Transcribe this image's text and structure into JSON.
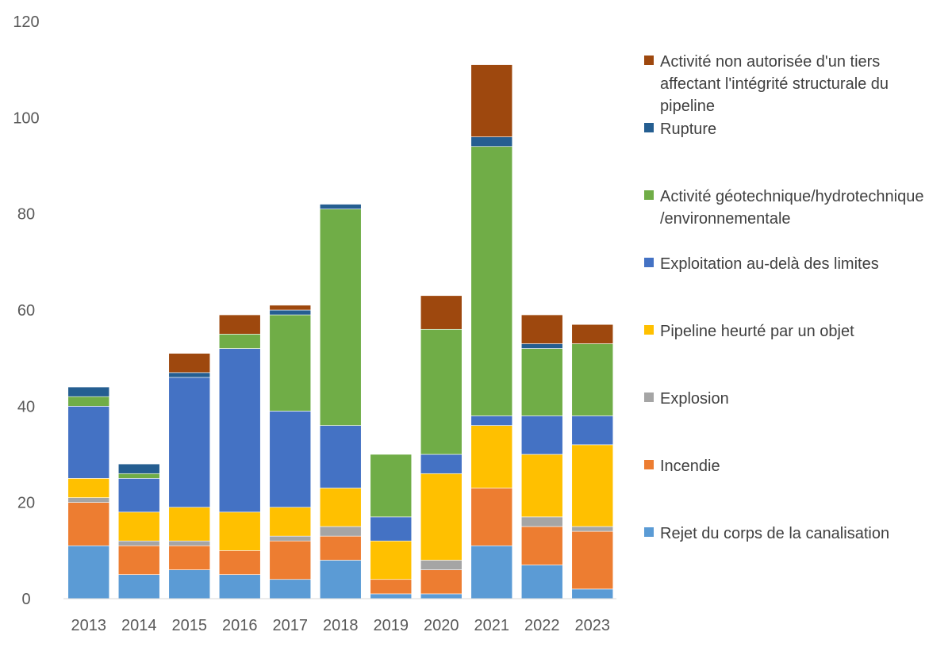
{
  "chart_data": {
    "type": "bar",
    "stacked": true,
    "title": "",
    "xlabel": "",
    "ylabel": "",
    "ylim": [
      0,
      120
    ],
    "yticks": [
      0,
      20,
      40,
      60,
      80,
      100,
      120
    ],
    "grid": false,
    "legend_position": "right",
    "categories": [
      "2013",
      "2014",
      "2015",
      "2016",
      "2017",
      "2018",
      "2019",
      "2020",
      "2021",
      "2022",
      "2023"
    ],
    "series": [
      {
        "name": "Rejet du corps de la canalisation",
        "color": "#5B9BD5",
        "values": [
          11,
          5,
          6,
          5,
          4,
          8,
          1,
          1,
          11,
          7,
          2
        ]
      },
      {
        "name": "Incendie",
        "color": "#ED7D31",
        "values": [
          9,
          6,
          5,
          5,
          8,
          5,
          3,
          5,
          12,
          8,
          12
        ]
      },
      {
        "name": "Explosion",
        "color": "#A5A5A5",
        "values": [
          1,
          1,
          1,
          0,
          1,
          2,
          0,
          2,
          0,
          2,
          1
        ]
      },
      {
        "name": "Pipeline heurté par un objet",
        "color": "#FFC000",
        "values": [
          4,
          6,
          7,
          8,
          6,
          8,
          8,
          18,
          13,
          13,
          17
        ]
      },
      {
        "name": "Exploitation au-delà des limites",
        "color": "#4472C4",
        "values": [
          15,
          7,
          27,
          34,
          20,
          13,
          5,
          4,
          2,
          8,
          6
        ]
      },
      {
        "name": "Activité géotechnique/hydrotechnique /environnementale",
        "color": "#70AD47",
        "values": [
          2,
          1,
          0,
          3,
          20,
          45,
          13,
          26,
          56,
          14,
          15
        ]
      },
      {
        "name": "Rupture",
        "color": "#255E91",
        "values": [
          2,
          2,
          1,
          0,
          1,
          1,
          0,
          0,
          2,
          1,
          0
        ]
      },
      {
        "name": "Activité non autorisée d'un tiers affectant l'intégrité structurale du pipeline",
        "color": "#9E480E",
        "values": [
          0,
          0,
          4,
          4,
          1,
          0,
          0,
          7,
          15,
          6,
          4
        ]
      }
    ]
  }
}
